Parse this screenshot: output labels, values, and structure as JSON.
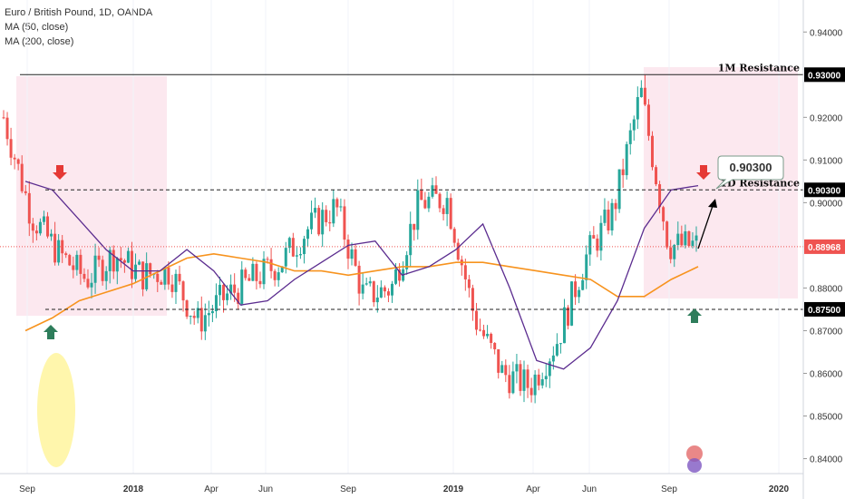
{
  "legend": {
    "symbol": "Euro / British Pound, 1D, OANDA",
    "ma50": "MA (50, close)",
    "ma200": "MA (200, close)"
  },
  "colors": {
    "up": "#26a69a",
    "down": "#ef5350",
    "ma50": "#5b2c8f",
    "ma200": "#f7931e",
    "zone": "#fce4ec",
    "last_price": "#ef5350",
    "level_tag": "#000000"
  },
  "axis": {
    "y_ticks": [
      "0.94000",
      "0.92000",
      "0.91000",
      "0.90000",
      "0.88000",
      "0.87000",
      "0.86000",
      "0.85000",
      "0.84000"
    ],
    "x_ticks": [
      {
        "label": "Sep",
        "year": false
      },
      {
        "label": "2018",
        "year": true
      },
      {
        "label": "Apr",
        "year": false
      },
      {
        "label": "Jun",
        "year": false
      },
      {
        "label": "Sep",
        "year": false
      },
      {
        "label": "2019",
        "year": true
      },
      {
        "label": "Apr",
        "year": false
      },
      {
        "label": "Jun",
        "year": false
      },
      {
        "label": "Sep",
        "year": false
      },
      {
        "label": "2020",
        "year": true
      }
    ]
  },
  "levels": [
    {
      "price": 0.93,
      "tag": "0.93000",
      "label": "1M Resistance",
      "style": "solid"
    },
    {
      "price": 0.903,
      "tag": "0.90300",
      "label": "1D Resistance",
      "style": "dashed"
    },
    {
      "price": 0.875,
      "tag": "0.87500",
      "label": "",
      "style": "dashed"
    }
  ],
  "last_price": {
    "value": 0.88968,
    "tag": "0.88968"
  },
  "callout": {
    "text": "0.90300"
  },
  "chart_data": {
    "type": "line",
    "title": "Euro / British Pound, 1D, OANDA",
    "xlabel": "",
    "ylabel": "",
    "ylim": [
      0.8365,
      0.9475
    ],
    "x": [
      "2017-09",
      "2017-10",
      "2017-11",
      "2017-12",
      "2018-01",
      "2018-02",
      "2018-03",
      "2018-04",
      "2018-05",
      "2018-06",
      "2018-07",
      "2018-08",
      "2018-09",
      "2018-10",
      "2018-11",
      "2018-12",
      "2019-01",
      "2019-02",
      "2019-03",
      "2019-04",
      "2019-05",
      "2019-06",
      "2019-07",
      "2019-08",
      "2019-09",
      "2019-10"
    ],
    "series": [
      {
        "name": "",
        "values": [
          0.92,
          0.897,
          0.888,
          0.882,
          0.888,
          0.883,
          0.884,
          0.872,
          0.878,
          0.882,
          0.886,
          0.894,
          0.899,
          0.878,
          0.88,
          0.9,
          0.901,
          0.873,
          0.86,
          0.857,
          0.868,
          0.887,
          0.898,
          0.926,
          0.89,
          0.89
        ]
      },
      {
        "name": "MA (50, close)",
        "values": [
          0.905,
          0.903,
          0.896,
          0.889,
          0.884,
          0.884,
          0.889,
          0.884,
          0.876,
          0.877,
          0.882,
          0.886,
          0.89,
          0.891,
          0.883,
          0.885,
          0.889,
          0.895,
          0.88,
          0.863,
          0.861,
          0.866,
          0.877,
          0.894,
          0.903,
          0.904
        ]
      },
      {
        "name": "MA (200, close)",
        "values": [
          0.87,
          0.873,
          0.877,
          0.879,
          0.881,
          0.884,
          0.887,
          0.888,
          0.887,
          0.886,
          0.884,
          0.884,
          0.883,
          0.884,
          0.885,
          0.885,
          0.886,
          0.886,
          0.885,
          0.884,
          0.883,
          0.882,
          0.878,
          0.878,
          0.882,
          0.885
        ]
      }
    ]
  }
}
